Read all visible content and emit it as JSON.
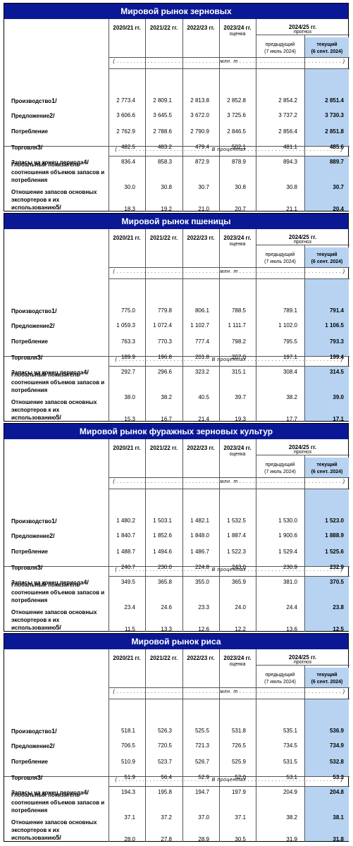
{
  "headers": {
    "years": [
      "2020/21 гг.",
      "2021/22 гг.",
      "2022/23 гг.",
      "2023/24 гг.",
      "2024/25 гг."
    ],
    "estimate": "оценка",
    "forecast": "прогноз",
    "previous": "предыдущий",
    "previous_date": "(7 июль 2024)",
    "current": "текущий",
    "current_date": "(6 сент. 2024)",
    "unit_row": "( . . . . . . . . . . . . . . . . . . . . . . . . . . . . . . млн. т . . . . . . . . . . . . . . . . . . . . . . . . . . . . . . )",
    "percent_row": "( . . . . . . . . . . . . . . . . . . . . . . . . . . . В процентах . . . . . . . . . . . . . . . . . . . . . . . . . . . )"
  },
  "labels": {
    "production": "Производство",
    "production_n": "1/",
    "supply": "Предложение",
    "supply_n": "2/",
    "consumption": "Потребление",
    "trade": "Торговля",
    "trade_n": "3/",
    "stocks": "Запасы на конец периода",
    "stocks_n": "4/",
    "global_ratio": "Глобальный показатель соотношения объемов запасов и потребления",
    "exporters": "Отношение запасов основных экспортеров к их использованию",
    "exporters_n": "5/"
  },
  "panels": [
    {
      "title": "Мировой рынок зерновых",
      "rows": [
        [
          "2 773.4",
          "2 809.1",
          "2 813.8",
          "2 852.8",
          "2 854.2",
          "2 851.4"
        ],
        [
          "3 606.6",
          "3 645.5",
          "3 672.0",
          "3 725.6",
          "3 737.2",
          "3 730.3"
        ],
        [
          "2 762.9",
          "2 788.6",
          "2 790.9",
          "2 846.5",
          "2 856.4",
          "2 851.8"
        ],
        [
          "482.5",
          "483.2",
          "479.4",
          "502.1",
          "481.1",
          "485.6"
        ],
        [
          "836.4",
          "858.3",
          "872.9",
          "878.9",
          "894.3",
          "889.7"
        ],
        [
          "30.0",
          "30.8",
          "30.7",
          "30.8",
          "30.8",
          "30.7"
        ],
        [
          "18.3",
          "19.2",
          "21.0",
          "20.7",
          "21.1",
          "20.4"
        ]
      ]
    },
    {
      "title": "Мировой рынок пшеницы",
      "rows": [
        [
          "775.0",
          "779.8",
          "806.1",
          "788.5",
          "789.1",
          "791.4"
        ],
        [
          "1 059.3",
          "1 072.4",
          "1 102.7",
          "1 111.7",
          "1 102.0",
          "1 106.5"
        ],
        [
          "763.3",
          "770.3",
          "777.4",
          "798.2",
          "795.5",
          "793.3"
        ],
        [
          "189.9",
          "196.8",
          "201.8",
          "207.0",
          "197.1",
          "199.4"
        ],
        [
          "292.7",
          "296.6",
          "323.2",
          "315.1",
          "308.4",
          "314.5"
        ],
        [
          "38.0",
          "38.2",
          "40.5",
          "39.7",
          "38.2",
          "39.0"
        ],
        [
          "15.3",
          "16.7",
          "21.4",
          "19.3",
          "17.7",
          "17.1"
        ]
      ]
    },
    {
      "title": "Мировой рынок фуражных зерновых культур",
      "rows": [
        [
          "1 480.2",
          "1 503.1",
          "1 482.1",
          "1 532.5",
          "1 530.0",
          "1 523.0"
        ],
        [
          "1 840.7",
          "1 852.6",
          "1 848.0",
          "1 887.4",
          "1 900.6",
          "1 888.9"
        ],
        [
          "1 488.7",
          "1 494.6",
          "1 486.7",
          "1 522.3",
          "1 529.4",
          "1 525.6"
        ],
        [
          "240.7",
          "230.0",
          "224.8",
          "243.0",
          "230.9",
          "232.9"
        ],
        [
          "349.5",
          "365.8",
          "355.0",
          "365.9",
          "381.0",
          "370.5"
        ],
        [
          "23.4",
          "24.6",
          "23.3",
          "24.0",
          "24.4",
          "23.8"
        ],
        [
          "11.5",
          "13.3",
          "12.6",
          "12.2",
          "13.6",
          "12.5"
        ]
      ]
    },
    {
      "title": "Мировой рынок риса",
      "rows": [
        [
          "518.1",
          "526.3",
          "525.5",
          "531.8",
          "535.1",
          "536.9"
        ],
        [
          "706.5",
          "720.5",
          "721.3",
          "726.5",
          "734.5",
          "734.9"
        ],
        [
          "510.9",
          "523.7",
          "526.7",
          "525.9",
          "531.5",
          "532.8"
        ],
        [
          "51.9",
          "56.4",
          "52.9",
          "52.0",
          "53.1",
          "53.3"
        ],
        [
          "194.3",
          "195.8",
          "194.7",
          "197.9",
          "204.9",
          "204.8"
        ],
        [
          "37.1",
          "37.2",
          "37.0",
          "37.1",
          "38.2",
          "38.1"
        ],
        [
          "28.0",
          "27.8",
          "28.9",
          "30.5",
          "31.9",
          "31.8"
        ]
      ]
    }
  ]
}
